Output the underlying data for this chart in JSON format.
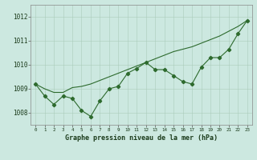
{
  "hours": [
    0,
    1,
    2,
    3,
    4,
    5,
    6,
    7,
    8,
    9,
    10,
    11,
    12,
    13,
    14,
    15,
    16,
    17,
    18,
    19,
    20,
    21,
    22,
    23
  ],
  "pressure": [
    1009.2,
    1008.7,
    1008.35,
    1008.7,
    1008.6,
    1008.1,
    1007.85,
    1008.5,
    1009.0,
    1009.1,
    1009.65,
    1009.85,
    1010.1,
    1009.8,
    1009.8,
    1009.55,
    1009.3,
    1009.2,
    1009.9,
    1010.3,
    1010.3,
    1010.65,
    1011.3,
    1011.85
  ],
  "trend": [
    1009.2,
    1009.0,
    1008.85,
    1008.85,
    1009.05,
    1009.1,
    1009.2,
    1009.35,
    1009.5,
    1009.65,
    1009.8,
    1009.95,
    1010.1,
    1010.25,
    1010.4,
    1010.55,
    1010.65,
    1010.75,
    1010.9,
    1011.05,
    1011.2,
    1011.4,
    1011.6,
    1011.85
  ],
  "line_color": "#2d6a2d",
  "bg_color": "#cce8e0",
  "grid_color": "#aaccbb",
  "xlabel": "Graphe pression niveau de la mer (hPa)",
  "ylim": [
    1007.5,
    1012.5
  ],
  "xlim": [
    -0.5,
    23.5
  ],
  "yticks": [
    1008,
    1009,
    1010,
    1011,
    1012
  ],
  "xtick_labels": [
    "0",
    "1",
    "2",
    "3",
    "4",
    "5",
    "6",
    "7",
    "8",
    "9",
    "10",
    "11",
    "12",
    "13",
    "14",
    "15",
    "16",
    "17",
    "18",
    "19",
    "20",
    "21",
    "22",
    "23"
  ],
  "ytick_fontsize": 5.5,
  "xtick_fontsize": 4.2,
  "xlabel_fontsize": 6.0,
  "linewidth": 0.8,
  "markersize": 2.2
}
